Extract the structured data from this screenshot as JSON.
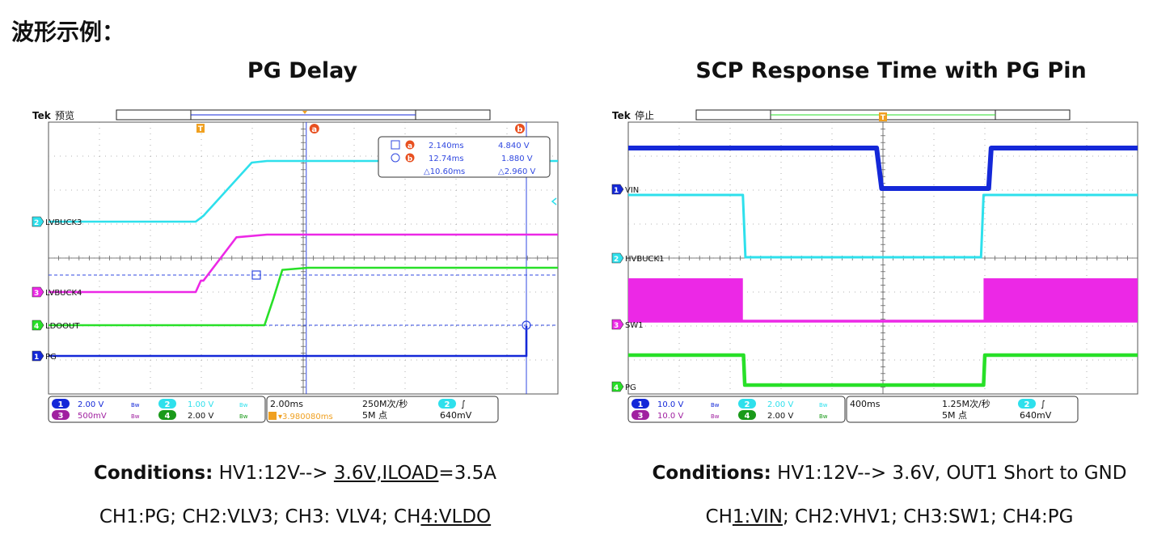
{
  "page_heading": "波形示例：",
  "panels": [
    {
      "title": "PG Delay",
      "status_prefix": "Tek",
      "status_text": "预览",
      "cursor_readout": {
        "a_time": "2.140ms",
        "a_value": "4.840 V",
        "b_time": "12.74ms",
        "b_value": "1.880 V",
        "delta_time": "△10.60ms",
        "delta_value": "△2.960 V"
      },
      "channel_labels": [
        "PG",
        "LVBUCK3",
        "LVBUCK4",
        "LDOOUT"
      ],
      "bottom_bar": {
        "ch1_scale": "2.00 V",
        "ch2_scale": "1.00 V",
        "ch3_scale": "500mV",
        "ch4_scale": "2.00 V",
        "timebase": "2.00ms",
        "sample_rate": "250M次/秒",
        "record_length": "5M 点",
        "trigger_ch": "2",
        "trigger_level": "640mV",
        "trigger_pos": "▾3.980080ms"
      },
      "conditions": {
        "label": "Conditions:",
        "prefix": " HV1:12V--> ",
        "underlined": "3.6V,ILOAD",
        "suffix": "=3.5A"
      },
      "channels_line": {
        "prefix": "CH1:PG; CH2:VLV3; CH3: VLV4; CH",
        "underlined": "4:VLDO",
        "suffix": ""
      }
    },
    {
      "title": "SCP Response Time with PG Pin",
      "status_prefix": "Tek",
      "status_text": "停止",
      "channel_labels": [
        "VIN",
        "HVBUCK1",
        "SW1",
        "PG"
      ],
      "bottom_bar": {
        "ch1_scale": "10.0 V",
        "ch2_scale": "2.00 V",
        "ch3_scale": "10.0 V",
        "ch4_scale": "2.00 V",
        "timebase": "400ms",
        "sample_rate": "1.25M次/秒",
        "record_length": "5M 点",
        "trigger_ch": "2",
        "trigger_level": "640mV"
      },
      "conditions": {
        "label": "Conditions:",
        "text": " HV1:12V--> 3.6V, OUT1 Short to GND"
      },
      "channels_line": {
        "prefix": "CH",
        "underlined": "1:VIN",
        "suffix": "; CH2:VHV1; CH3:SW1; CH4:PG"
      }
    }
  ],
  "colors": {
    "ch1": "#1428d8",
    "ch2": "#2ee0ec",
    "ch3": "#ec28e6",
    "ch4": "#28e028",
    "cursor": "#3048e0",
    "trigger": "#f0a020",
    "cursor_marker": "#e85020"
  },
  "chart_data": [
    {
      "type": "line",
      "title": "PG Delay",
      "x_unit": "ms",
      "x_div": 2.0,
      "x_range": [
        -7.98,
        12.02
      ],
      "series": [
        {
          "name": "LVBUCK3",
          "unit": "V",
          "x": [
            -7.98,
            -2.2,
            -1.9,
            0.0,
            0.6,
            12.02
          ],
          "y": [
            0.0,
            0.0,
            0.25,
            2.55,
            2.62,
            2.62
          ]
        },
        {
          "name": "LVBUCK4",
          "unit": "V",
          "x": [
            -7.98,
            -2.2,
            -2.0,
            -1.9,
            -0.6,
            0.6,
            12.02
          ],
          "y": [
            0.0,
            0.0,
            0.3,
            0.3,
            1.45,
            1.52,
            1.52
          ]
        },
        {
          "name": "LDOOUT",
          "unit": "V",
          "x": [
            -7.98,
            0.5,
            0.85,
            1.2,
            2.2,
            12.02
          ],
          "y": [
            0.0,
            0.0,
            2.5,
            5.2,
            5.4,
            5.4
          ]
        },
        {
          "name": "PG",
          "unit": "V",
          "x": [
            -7.98,
            10.6,
            10.7,
            12.02
          ],
          "y": [
            0.0,
            0.0,
            1.88,
            1.88
          ]
        }
      ],
      "cursors": {
        "a": {
          "t_ms": 2.14,
          "v": 4.84
        },
        "b": {
          "t_ms": 12.74,
          "v": 1.88
        },
        "delta": {
          "t_ms": 10.6,
          "v": 2.96
        }
      }
    },
    {
      "type": "line",
      "title": "SCP Response Time with PG Pin",
      "x_unit": "ms",
      "x_div": 400,
      "series": [
        {
          "name": "VIN",
          "unit": "V",
          "x": [
            0,
            1950,
            1990,
            2830,
            2850,
            4000
          ],
          "y": [
            12,
            12,
            3.6,
            3.6,
            12,
            12
          ]
        },
        {
          "name": "HVBUCK1",
          "unit": "V",
          "x": [
            0,
            900,
            920,
            2770,
            2790,
            4000
          ],
          "y": [
            3.6,
            3.6,
            0,
            0,
            3.6,
            3.6
          ]
        },
        {
          "name": "SW1",
          "unit": "V",
          "x": [
            0,
            900,
            920,
            2770,
            2790,
            4000
          ],
          "y": [
            12,
            12,
            0,
            0,
            12,
            12
          ]
        },
        {
          "name": "PG",
          "unit": "V",
          "x": [
            0,
            905,
            915,
            2790,
            2800,
            4000
          ],
          "y": [
            3.6,
            3.6,
            0,
            0,
            3.6,
            3.6
          ]
        }
      ]
    }
  ]
}
